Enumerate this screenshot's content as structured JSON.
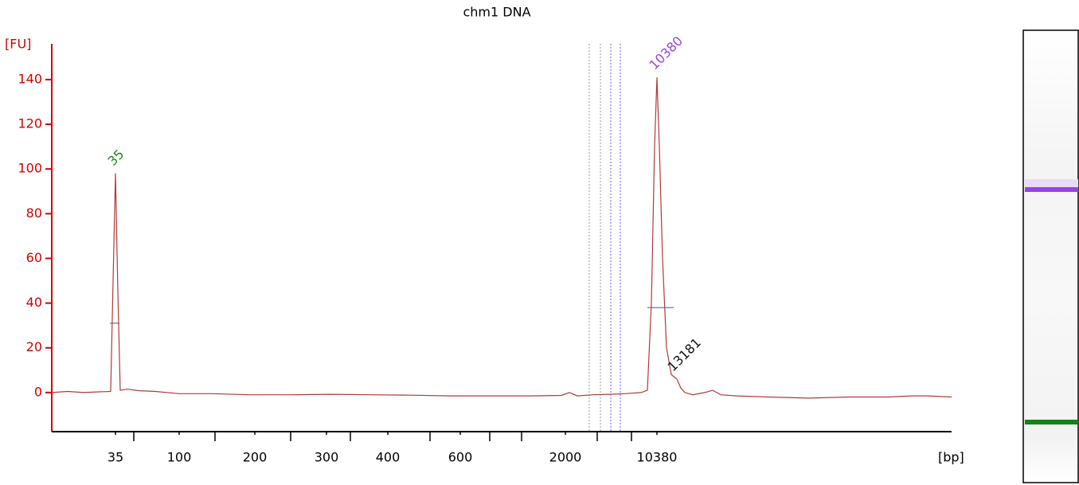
{
  "chart_data": {
    "type": "line",
    "title": "chm1 DNA",
    "ylabel": "[FU]",
    "xlabel": "[bp]",
    "color": "#b03a3a",
    "axis_color": "#d40000",
    "x": [
      0,
      2,
      4,
      6,
      7.4,
      7.7,
      8.0,
      8.3,
      8.6,
      9.5,
      11,
      13,
      16,
      20,
      25,
      30,
      35,
      40,
      45,
      50,
      55,
      60,
      64,
      65,
      66,
      68,
      70,
      72,
      74,
      74.8,
      75.3,
      75.7,
      76.0,
      76.3,
      76.7,
      77.2,
      77.8,
      78.5,
      79.0,
      79.5,
      80.5,
      82,
      83,
      84,
      86,
      90,
      95,
      100,
      105,
      108,
      110,
      113
    ],
    "values": [
      0,
      0.5,
      0,
      0.3,
      0.5,
      50,
      98,
      45,
      1,
      1.5,
      0.8,
      0.5,
      -0.5,
      -0.5,
      -1,
      -1,
      -0.8,
      -1,
      -1.2,
      -1.5,
      -1.5,
      -1.5,
      -1.3,
      0,
      -1.5,
      -1,
      -0.8,
      -0.5,
      0,
      1,
      40,
      110,
      141,
      110,
      60,
      20,
      8,
      6,
      2,
      0,
      -1,
      0,
      1,
      -1,
      -1.5,
      -2,
      -2.5,
      -2,
      -2,
      -1.5,
      -1.5,
      -2
    ],
    "xlim": [
      0,
      113
    ],
    "ylim": [
      -17.5,
      156
    ],
    "yticks": [
      0,
      20,
      40,
      60,
      80,
      100,
      120,
      140
    ],
    "xticks": [
      {
        "value": 8.0,
        "label": "35"
      },
      {
        "value": 16.0,
        "label": "100"
      },
      {
        "value": 25.5,
        "label": "200"
      },
      {
        "value": 34.5,
        "label": "300"
      },
      {
        "value": 42.2,
        "label": "400"
      },
      {
        "value": 51.3,
        "label": "600"
      },
      {
        "value": 64.5,
        "label": "2000"
      },
      {
        "value": 76.0,
        "label": "10380"
      }
    ],
    "xminorticks": [
      10.3,
      20.5,
      30.0,
      37.5,
      47.5,
      55.0,
      59.0,
      68.5,
      72.8
    ],
    "markers": [
      {
        "x": 67.5,
        "color": "#9a9a9a"
      },
      {
        "x": 68.9,
        "color": "#9a9a9a"
      },
      {
        "x": 70.2,
        "color": "#7b5cd6"
      },
      {
        "x": 71.4,
        "color": "#7b5cd6"
      }
    ],
    "width_markers": [
      {
        "x": [
          7.3,
          8.5
        ],
        "y": 31,
        "color": "#555555"
      },
      {
        "x": [
          74.8,
          78.1
        ],
        "y": 38,
        "color": "#3b5ea8"
      }
    ],
    "peak_labels": [
      {
        "label": "35",
        "x": 8.0,
        "y": 98,
        "color": "#1a8a1a"
      },
      {
        "label": "10380",
        "x": 76.0,
        "y": 141,
        "color": "#9b40e8"
      },
      {
        "label": "13181",
        "x": 78.3,
        "y": 6,
        "color": "#111111"
      }
    ]
  }
}
